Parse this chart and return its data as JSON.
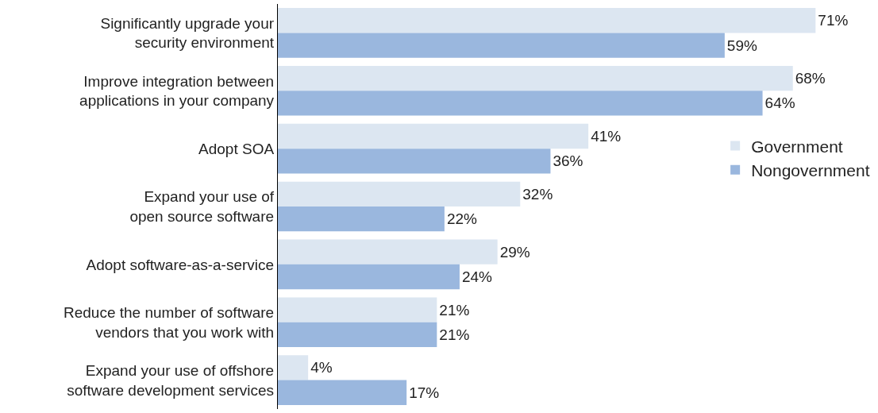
{
  "chart_data": {
    "type": "bar",
    "orientation": "horizontal",
    "categories": [
      "Significantly upgrade your\nsecurity environment",
      "Improve integration between\napplications in your company",
      "Adopt SOA",
      "Expand your use of\nopen source software",
      "Adopt software-as-a-service",
      "Reduce the number of software\nvendors that you work with",
      "Expand your use of offshore\nsoftware development services"
    ],
    "series": [
      {
        "name": "Government",
        "color": "#dce6f1",
        "values": [
          71,
          68,
          41,
          32,
          29,
          21,
          4
        ],
        "value_labels": [
          "71%",
          "68%",
          "41%",
          "32%",
          "29%",
          "21%",
          "4%"
        ]
      },
      {
        "name": "Nongovernment",
        "color": "#9ab7de",
        "values": [
          59,
          64,
          36,
          22,
          24,
          21,
          17
        ],
        "value_labels": [
          "59%",
          "64%",
          "36%",
          "22%",
          "24%",
          "21%",
          "17%"
        ]
      }
    ],
    "legend": "right"
  }
}
